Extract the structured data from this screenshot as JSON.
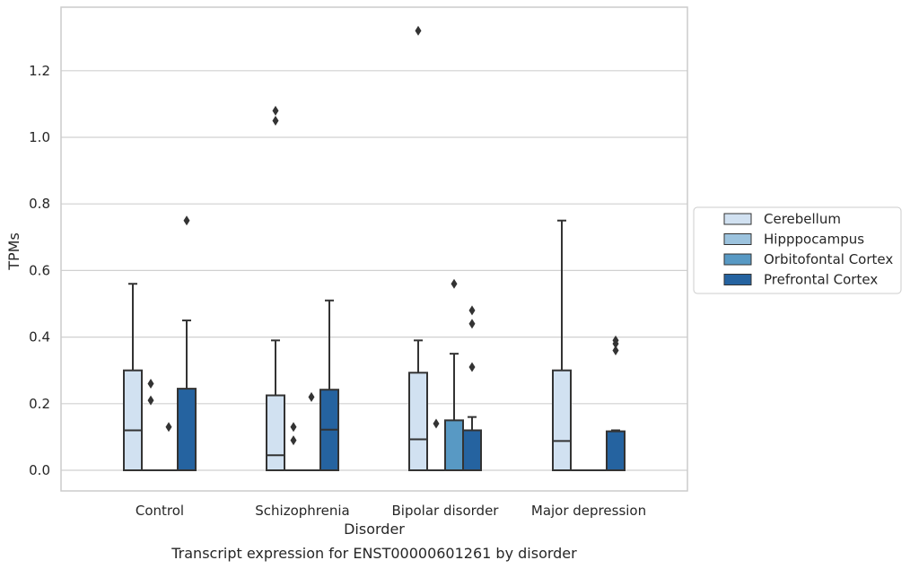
{
  "chart_data": {
    "type": "box",
    "title": "",
    "caption": "Transcript expression for ENST00000601261 by disorder",
    "xlabel": "Disorder",
    "ylabel": "TPMs",
    "ylim": [
      -0.065,
      1.38
    ],
    "yticks": [
      0.0,
      0.2,
      0.4,
      0.6,
      0.8,
      1.0,
      1.2
    ],
    "ytick_labels": [
      "0.0",
      "0.2",
      "0.4",
      "0.6",
      "0.8",
      "1.0",
      "1.2"
    ],
    "grid": "horizontal",
    "legend_position": "right",
    "categories": [
      "Control",
      "Schizophrenia",
      "Bipolar disorder",
      "Major depression"
    ],
    "series": [
      {
        "name": "Cerebellum",
        "color": "#d1e1f1",
        "boxes": [
          {
            "min": 0.0,
            "q1": 0.0,
            "median": 0.12,
            "q3": 0.3,
            "max": 0.56,
            "outliers": []
          },
          {
            "min": 0.0,
            "q1": 0.0,
            "median": 0.045,
            "q3": 0.225,
            "max": 0.39,
            "outliers": [
              1.05,
              1.08
            ]
          },
          {
            "min": 0.0,
            "q1": 0.0,
            "median": 0.093,
            "q3": 0.293,
            "max": 0.39,
            "outliers": [
              1.32
            ]
          },
          {
            "min": 0.0,
            "q1": 0.0,
            "median": 0.088,
            "q3": 0.3,
            "max": 0.75,
            "outliers": []
          }
        ]
      },
      {
        "name": "Hipppocampus",
        "color": "#9cc3de",
        "boxes": [
          {
            "min": 0.0,
            "q1": 0.0,
            "median": 0.0,
            "q3": 0.0,
            "max": 0.0,
            "outliers": [
              0.21,
              0.26
            ]
          },
          {
            "min": 0.0,
            "q1": 0.0,
            "median": 0.0,
            "q3": 0.0,
            "max": 0.0,
            "outliers": [
              0.09,
              0.13
            ]
          },
          {
            "min": 0.0,
            "q1": 0.0,
            "median": 0.0,
            "q3": 0.0,
            "max": 0.0,
            "outliers": [
              0.14
            ]
          },
          {
            "min": 0.0,
            "q1": 0.0,
            "median": 0.0,
            "q3": 0.0,
            "max": 0.0,
            "outliers": []
          }
        ]
      },
      {
        "name": "Orbitofontal Cortex",
        "color": "#5899c4",
        "boxes": [
          {
            "min": 0.0,
            "q1": 0.0,
            "median": 0.0,
            "q3": 0.0,
            "max": 0.0,
            "outliers": [
              0.13
            ]
          },
          {
            "min": 0.0,
            "q1": 0.0,
            "median": 0.0,
            "q3": 0.0,
            "max": 0.0,
            "outliers": [
              0.22
            ]
          },
          {
            "min": 0.0,
            "q1": 0.0,
            "median": 0.0,
            "q3": 0.15,
            "max": 0.35,
            "outliers": [
              0.56
            ]
          },
          {
            "min": 0.0,
            "q1": 0.0,
            "median": 0.0,
            "q3": 0.0,
            "max": 0.0,
            "outliers": []
          }
        ]
      },
      {
        "name": "Prefrontal Cortex",
        "color": "#2563a0",
        "boxes": [
          {
            "min": 0.0,
            "q1": 0.0,
            "median": 0.0,
            "q3": 0.245,
            "max": 0.45,
            "outliers": [
              0.75
            ]
          },
          {
            "min": 0.0,
            "q1": 0.0,
            "median": 0.122,
            "q3": 0.242,
            "max": 0.51,
            "outliers": []
          },
          {
            "min": 0.0,
            "q1": 0.0,
            "median": 0.0,
            "q3": 0.12,
            "max": 0.16,
            "outliers": [
              0.31,
              0.44,
              0.48
            ]
          },
          {
            "min": 0.0,
            "q1": 0.0,
            "median": 0.0,
            "q3": 0.117,
            "max": 0.12,
            "outliers": [
              0.36,
              0.38,
              0.39
            ]
          }
        ]
      }
    ]
  }
}
